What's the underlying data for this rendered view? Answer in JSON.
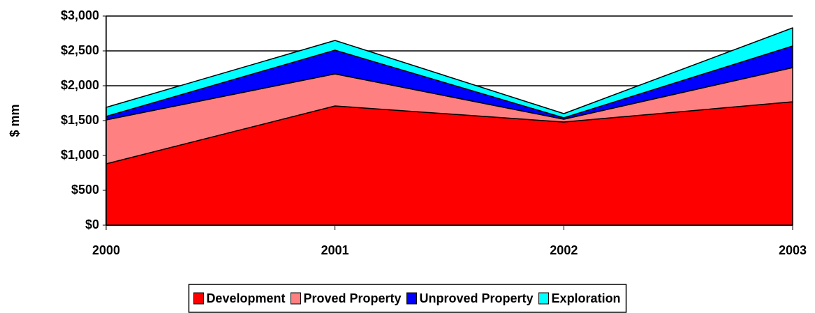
{
  "chart_data": {
    "type": "stacked-area",
    "y_axis_label": "$ mm",
    "categories": [
      "2000",
      "2001",
      "2002",
      "2003"
    ],
    "series": [
      {
        "name": "Development",
        "color": "#ff0000",
        "values": [
          880,
          1710,
          1480,
          1770
        ]
      },
      {
        "name": "Proved Property",
        "color": "#ff8080",
        "values": [
          630,
          460,
          40,
          490
        ]
      },
      {
        "name": "Unproved Property",
        "color": "#0000ff",
        "values": [
          50,
          340,
          20,
          310
        ]
      },
      {
        "name": "Exploration",
        "color": "#00ffff",
        "values": [
          130,
          140,
          60,
          260
        ]
      }
    ],
    "ylim": [
      0,
      3000
    ],
    "yticks": [
      {
        "value": 0,
        "label": "$0"
      },
      {
        "value": 500,
        "label": "$500"
      },
      {
        "value": 1000,
        "label": "$1,000"
      },
      {
        "value": 1500,
        "label": "$1,500"
      },
      {
        "value": 2000,
        "label": "$2,000"
      },
      {
        "value": 2500,
        "label": "$2,500"
      },
      {
        "value": 3000,
        "label": "$3,000"
      }
    ],
    "grid": true,
    "legend": "bottom"
  }
}
